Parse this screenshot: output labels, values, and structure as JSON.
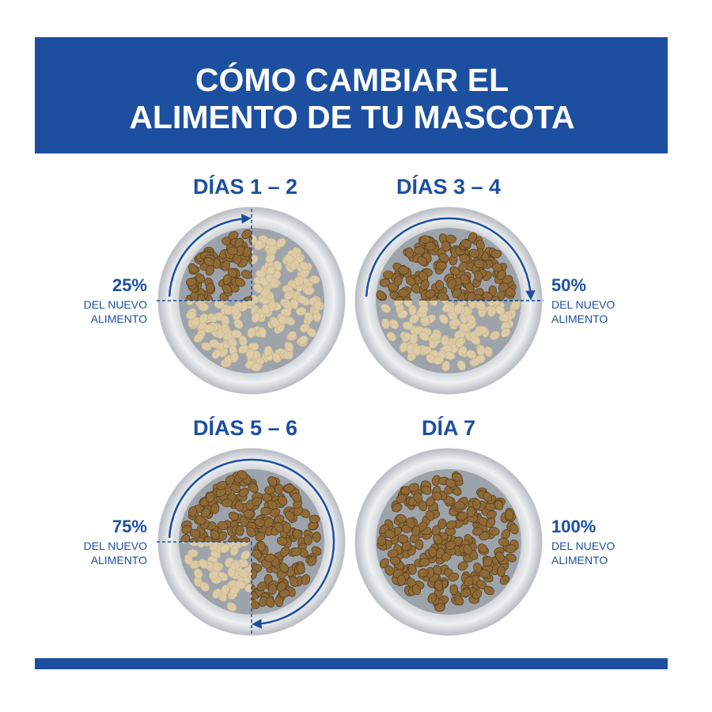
{
  "header": {
    "title_lines": [
      "CÓMO CAMBIAR EL",
      "ALIMENTO DE TU MASCOTA"
    ]
  },
  "panels": [
    {
      "days": "DÍAS 1 – 2",
      "percent": "25%",
      "description_lines": [
        "DEL NUEVO",
        "ALIMENTO"
      ]
    },
    {
      "days": "DÍAS 3 – 4",
      "percent": "50%",
      "description_lines": [
        "DEL NUEVO",
        "ALIMENTO"
      ]
    },
    {
      "days": "DÍAS 5 – 6",
      "percent": "75%",
      "description_lines": [
        "DEL NUEVO",
        "ALIMENTO"
      ]
    },
    {
      "days": "DÍA 7",
      "percent": "100%",
      "description_lines": [
        "DEL NUEVO",
        "ALIMENTO"
      ]
    }
  ]
}
